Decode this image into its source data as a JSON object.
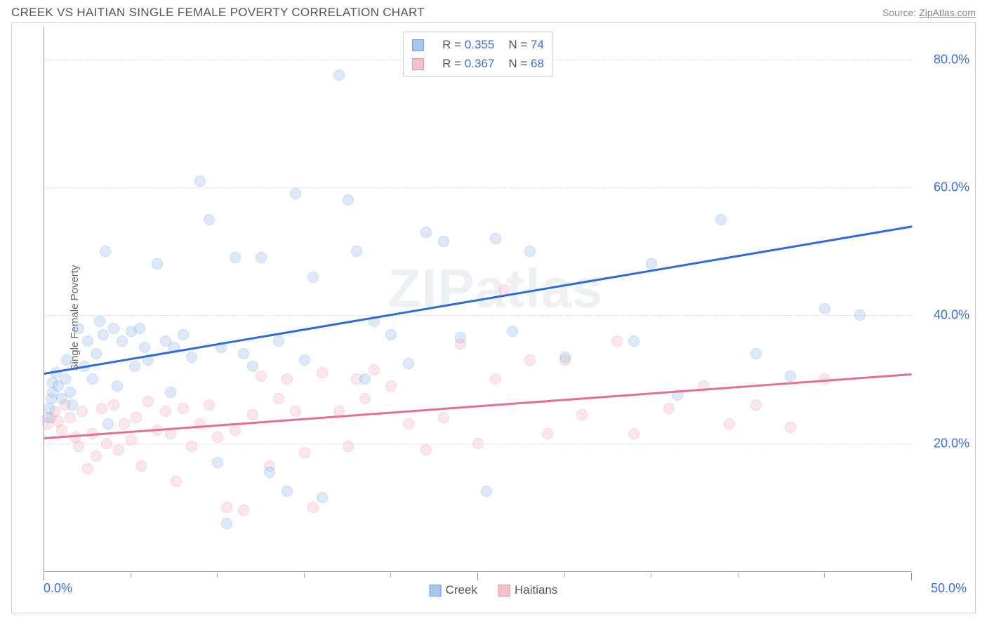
{
  "header": {
    "title": "CREEK VS HAITIAN SINGLE FEMALE POVERTY CORRELATION CHART",
    "source_prefix": "Source: ",
    "source_link": "ZipAtlas.com"
  },
  "watermark": "ZIPatlas",
  "chart": {
    "type": "scatter",
    "ylabel": "Single Female Poverty",
    "xlim": [
      0,
      50
    ],
    "ylim": [
      0,
      85
    ],
    "x_ticks_major": [
      0,
      25,
      50
    ],
    "x_ticks_minor": [
      5,
      10,
      15,
      20,
      30,
      35,
      40,
      45
    ],
    "y_gridlines": [
      20,
      40,
      60,
      80
    ],
    "y_tick_labels": [
      "20.0%",
      "40.0%",
      "60.0%",
      "80.0%"
    ],
    "x_tick_left": "0.0%",
    "x_tick_right": "50.0%",
    "background_color": "#ffffff",
    "grid_color": "#dddddd",
    "axis_color": "#999999",
    "tick_label_color": "#3b6fd6",
    "axis_label_color": "#666666",
    "axis_label_fontsize": 15,
    "tick_fontsize": 18,
    "marker_radius": 8,
    "marker_opacity": 0.38,
    "line_width": 2.5
  },
  "series": {
    "creek": {
      "label": "Creek",
      "fill_color": "#a7c6ed",
      "stroke_color": "#6fa0de",
      "line_color": "#2e6bd6",
      "R": "0.355",
      "N": "74",
      "trend": {
        "x1": 0,
        "y1": 31,
        "x2": 50,
        "y2": 54
      },
      "points": [
        [
          0.2,
          24
        ],
        [
          0.3,
          25.5
        ],
        [
          0.4,
          27
        ],
        [
          0.5,
          28
        ],
        [
          0.5,
          29.5
        ],
        [
          0.7,
          31
        ],
        [
          0.8,
          29
        ],
        [
          1.0,
          27
        ],
        [
          1.2,
          30
        ],
        [
          1.3,
          33
        ],
        [
          1.5,
          28
        ],
        [
          1.6,
          26
        ],
        [
          2.0,
          38
        ],
        [
          2.3,
          32
        ],
        [
          2.5,
          36
        ],
        [
          2.8,
          30
        ],
        [
          3.0,
          34
        ],
        [
          3.2,
          39
        ],
        [
          3.4,
          37
        ],
        [
          3.5,
          50
        ],
        [
          3.7,
          23
        ],
        [
          4.0,
          38
        ],
        [
          4.2,
          29
        ],
        [
          4.5,
          36
        ],
        [
          5.0,
          37.5
        ],
        [
          5.2,
          32
        ],
        [
          5.5,
          38
        ],
        [
          5.8,
          35
        ],
        [
          6.0,
          33
        ],
        [
          6.5,
          48
        ],
        [
          7.0,
          36
        ],
        [
          7.3,
          28
        ],
        [
          7.5,
          35
        ],
        [
          8.0,
          37
        ],
        [
          8.5,
          33.5
        ],
        [
          9.0,
          61
        ],
        [
          9.5,
          55
        ],
        [
          10.0,
          17
        ],
        [
          10.2,
          35
        ],
        [
          10.5,
          7.5
        ],
        [
          11.0,
          49
        ],
        [
          11.5,
          34
        ],
        [
          12.0,
          32
        ],
        [
          12.5,
          49
        ],
        [
          13.0,
          15.5
        ],
        [
          13.5,
          36
        ],
        [
          14.0,
          12.5
        ],
        [
          14.5,
          59
        ],
        [
          15.0,
          33
        ],
        [
          15.5,
          46
        ],
        [
          16.0,
          11.5
        ],
        [
          17.0,
          77.5
        ],
        [
          17.5,
          58
        ],
        [
          18.0,
          50
        ],
        [
          18.5,
          30
        ],
        [
          19.0,
          39
        ],
        [
          20.0,
          37
        ],
        [
          21.0,
          32.5
        ],
        [
          22.0,
          53
        ],
        [
          23.0,
          51.5
        ],
        [
          24.0,
          36.5
        ],
        [
          25.5,
          12.5
        ],
        [
          26.0,
          52
        ],
        [
          27.0,
          37.5
        ],
        [
          28.0,
          50
        ],
        [
          30.0,
          33.5
        ],
        [
          34.0,
          36
        ],
        [
          35.0,
          48
        ],
        [
          36.5,
          27.5
        ],
        [
          39.0,
          55
        ],
        [
          41.0,
          34
        ],
        [
          43.0,
          30.5
        ],
        [
          45.0,
          41
        ],
        [
          47.0,
          40
        ]
      ]
    },
    "haitian": {
      "label": "Haitians",
      "fill_color": "#f3c0cc",
      "stroke_color": "#e78fa6",
      "line_color": "#e56f8f",
      "R": "0.367",
      "N": "68",
      "trend": {
        "x1": 0,
        "y1": 21,
        "x2": 50,
        "y2": 31
      },
      "points": [
        [
          0.2,
          23
        ],
        [
          0.4,
          24
        ],
        [
          0.6,
          25
        ],
        [
          0.8,
          23.5
        ],
        [
          1.0,
          22
        ],
        [
          1.2,
          26
        ],
        [
          1.5,
          24
        ],
        [
          1.8,
          21
        ],
        [
          2.0,
          19.5
        ],
        [
          2.2,
          25
        ],
        [
          2.5,
          16
        ],
        [
          2.8,
          21.5
        ],
        [
          3.0,
          18
        ],
        [
          3.3,
          25.5
        ],
        [
          3.6,
          20
        ],
        [
          4.0,
          26
        ],
        [
          4.3,
          19
        ],
        [
          4.6,
          23
        ],
        [
          5.0,
          20.5
        ],
        [
          5.3,
          24
        ],
        [
          5.6,
          16.5
        ],
        [
          6.0,
          26.5
        ],
        [
          6.5,
          22
        ],
        [
          7.0,
          25
        ],
        [
          7.3,
          21.5
        ],
        [
          7.6,
          14
        ],
        [
          8.0,
          25.5
        ],
        [
          8.5,
          19.5
        ],
        [
          9.0,
          23
        ],
        [
          9.5,
          26
        ],
        [
          10.0,
          21
        ],
        [
          10.5,
          10
        ],
        [
          11.0,
          22
        ],
        [
          11.5,
          9.5
        ],
        [
          12.0,
          24.5
        ],
        [
          12.5,
          30.5
        ],
        [
          13.0,
          16.5
        ],
        [
          13.5,
          27
        ],
        [
          14.0,
          30
        ],
        [
          14.5,
          25
        ],
        [
          15.0,
          18.5
        ],
        [
          15.5,
          10
        ],
        [
          16.0,
          31
        ],
        [
          17.0,
          25
        ],
        [
          17.5,
          19.5
        ],
        [
          18.0,
          30
        ],
        [
          18.5,
          27
        ],
        [
          19.0,
          31.5
        ],
        [
          20.0,
          29
        ],
        [
          21.0,
          23
        ],
        [
          22.0,
          19
        ],
        [
          23.0,
          24
        ],
        [
          24.0,
          35.5
        ],
        [
          25.0,
          20
        ],
        [
          26.0,
          30
        ],
        [
          26.5,
          44
        ],
        [
          28.0,
          33
        ],
        [
          29.0,
          21.5
        ],
        [
          30.0,
          33
        ],
        [
          31.0,
          24.5
        ],
        [
          33.0,
          36
        ],
        [
          34.0,
          21.5
        ],
        [
          36.0,
          25.5
        ],
        [
          38.0,
          29
        ],
        [
          39.5,
          23
        ],
        [
          41.0,
          26
        ],
        [
          43.0,
          22.5
        ],
        [
          45.0,
          30
        ]
      ]
    }
  },
  "legend_top": {
    "r_label": "R =",
    "n_label": "N ="
  }
}
